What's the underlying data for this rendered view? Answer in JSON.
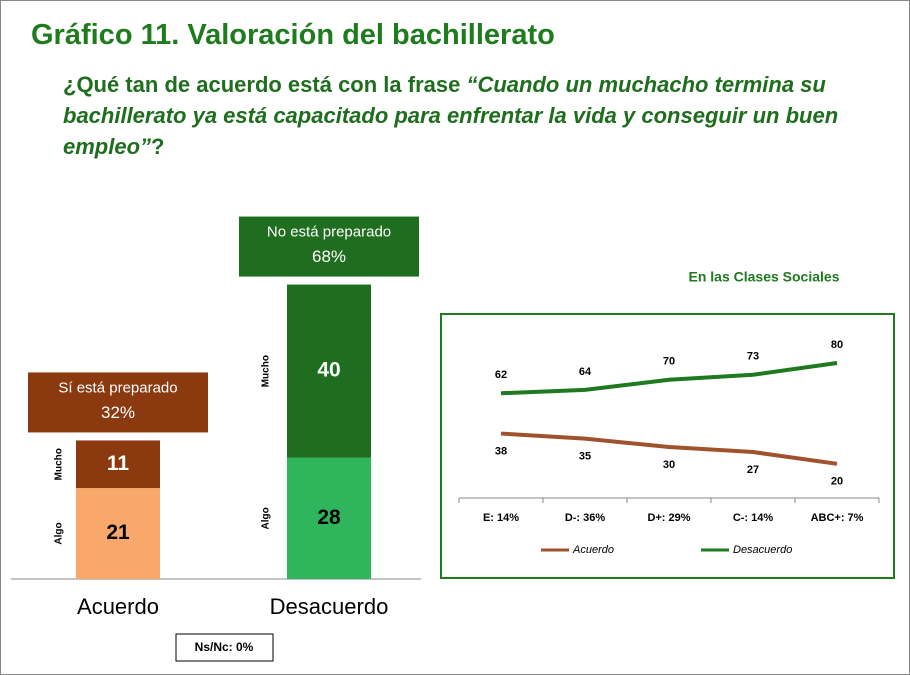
{
  "title": "Gráfico 11. Valoración del bachillerato",
  "question": {
    "lead": "¿Qué tan de acuerdo está con la frase ",
    "quote": "“Cuando un muchacho termina su bachillerato ya está capacitado para enfrentar la vida y conseguir un buen empleo”",
    "tail": "?"
  },
  "chart_data": [
    {
      "type": "bar",
      "stacked": true,
      "categories": [
        "Acuerdo",
        "Desacuerdo"
      ],
      "series": [
        {
          "name": "Algo",
          "colors": [
            "#f9a86c",
            "#2fb65c"
          ],
          "label_colors": [
            "#000000",
            "#000000"
          ],
          "values": [
            21,
            28
          ]
        },
        {
          "name": "Mucho",
          "colors": [
            "#8b3a0f",
            "#1f6e1f"
          ],
          "label_colors": [
            "#ffffff",
            "#ffffff"
          ],
          "values": [
            11,
            40
          ]
        }
      ],
      "group_labels": [
        "Sí está preparado",
        "No está preparado"
      ],
      "totals": [
        32,
        68
      ],
      "total_labels": [
        "32%",
        "68%"
      ],
      "total_colors": [
        "#8b3a0f",
        "#1f6e1f"
      ]
    },
    {
      "type": "line",
      "title": "En las Clases Sociales",
      "categories": [
        "E: 14%",
        "D-: 36%",
        "D+: 29%",
        "C-: 14%",
        "ABC+: 7%"
      ],
      "series": [
        {
          "name": "Acuerdo",
          "color": "#a0522d",
          "values": [
            38,
            35,
            30,
            27,
            20
          ]
        },
        {
          "name": "Desacuerdo",
          "color": "#1f7a1f",
          "values": [
            62,
            64,
            70,
            73,
            80
          ]
        }
      ]
    }
  ],
  "note": "Ns/Nc: 0%"
}
